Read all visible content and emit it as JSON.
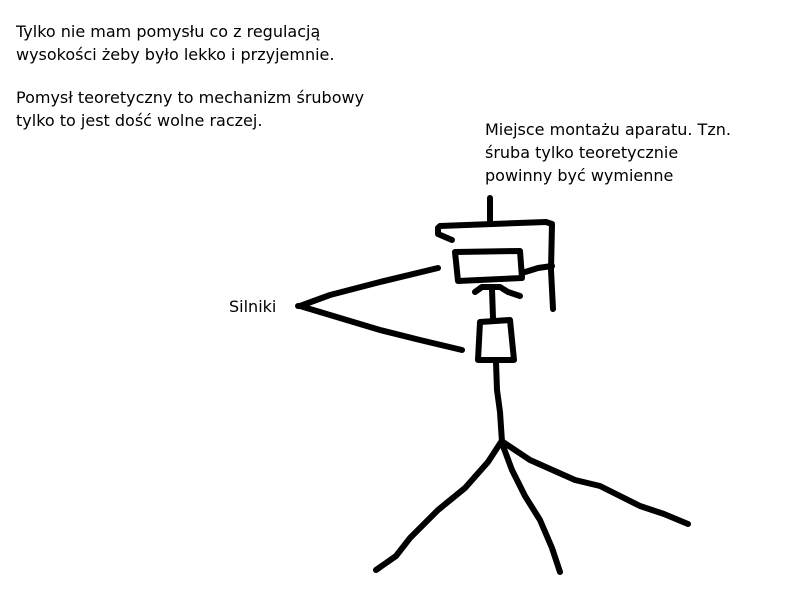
{
  "notes": {
    "top": {
      "line1": "Tylko nie mam pomysłu co z regulacją",
      "line2": "wysokości żeby było lekko i przyjemnie."
    },
    "idea": {
      "line1": "Pomysł teoretyczny to mechanizm śrubowy",
      "line2": "tylko to jest dość wolne raczej."
    },
    "mount": {
      "line1": "Miejsce montażu aparatu. Tzn.",
      "line2": "śruba tylko teoretycznie",
      "line3": "powinny być wymienne"
    },
    "motors": "Silniki"
  },
  "colors": {
    "background": "#ffffff",
    "ink": "#000000"
  }
}
